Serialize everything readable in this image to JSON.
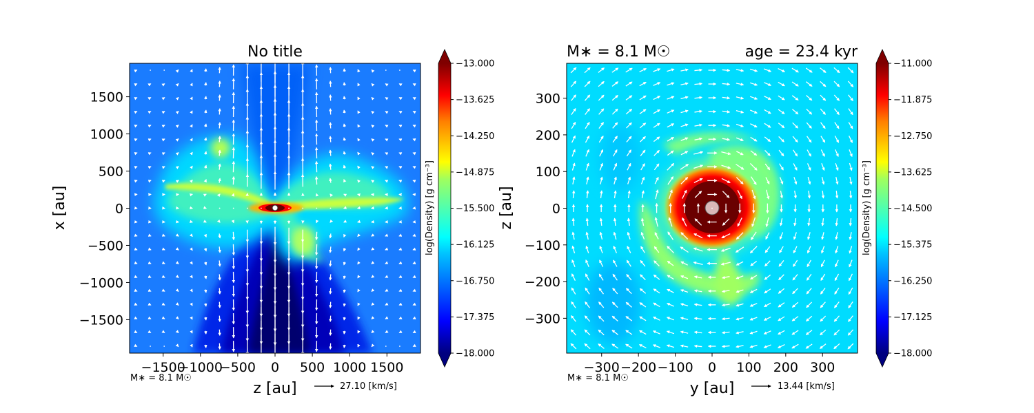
{
  "chart_data": [
    {
      "type": "heatmap",
      "panel": "left",
      "title": "No title",
      "xlabel": "z [au]",
      "ylabel": "x [au]",
      "xlim": [
        -1950,
        1950
      ],
      "ylim": [
        -1950,
        1950
      ],
      "xticks": [
        -1500,
        -1000,
        -500,
        0,
        500,
        1000,
        1500
      ],
      "xtick_labels": [
        "−1500",
        "−1000",
        "−500",
        "0",
        "500",
        "1000",
        "1500"
      ],
      "yticks": [
        1500,
        1000,
        500,
        0,
        -500,
        -1000,
        -1500
      ],
      "ytick_labels": [
        "1500",
        "1000",
        "500",
        "0",
        "−500",
        "−1000",
        "−1500"
      ],
      "colorbar": {
        "label": "log(Density) [g cm⁻³]",
        "min": -18.0,
        "max": -13.0,
        "ticks": [
          -13.0,
          -13.625,
          -14.25,
          -14.875,
          -15.5,
          -16.125,
          -16.75,
          -17.375,
          -18.0
        ],
        "tick_labels": [
          "−13.000",
          "−13.625",
          "−14.250",
          "−14.875",
          "−15.500",
          "−16.125",
          "−16.750",
          "−17.375",
          "−18.000"
        ],
        "extend": "both"
      },
      "corner_label": "M∗ = 8.1 M☉",
      "quiver_key": "27.10 [km/s]",
      "structure": "edge-on disk with bipolar outflow; dense core at center"
    },
    {
      "type": "heatmap",
      "panel": "right",
      "title_left": "M∗ = 8.1 M☉",
      "title_right": "age = 23.4 kyr",
      "xlabel": "y [au]",
      "ylabel": "z [au]",
      "xlim": [
        -395,
        395
      ],
      "ylim": [
        -395,
        395
      ],
      "xticks": [
        -300,
        -200,
        -100,
        0,
        100,
        200,
        300
      ],
      "xtick_labels": [
        "−300",
        "−200",
        "−100",
        "0",
        "100",
        "200",
        "300"
      ],
      "yticks": [
        300,
        200,
        100,
        0,
        -100,
        -200,
        -300
      ],
      "ytick_labels": [
        "300",
        "200",
        "100",
        "0",
        "−100",
        "−200",
        "−300"
      ],
      "colorbar": {
        "label": "log(Density) [g cm⁻³]",
        "min": -18.0,
        "max": -11.0,
        "ticks": [
          -11.0,
          -11.875,
          -12.75,
          -13.625,
          -14.5,
          -15.375,
          -16.25,
          -17.125,
          -18.0
        ],
        "tick_labels": [
          "−11.000",
          "−11.875",
          "−12.750",
          "−13.625",
          "−14.500",
          "−15.375",
          "−16.250",
          "−17.125",
          "−18.000"
        ],
        "extend": "both"
      },
      "corner_label": "M∗ = 8.1 M☉",
      "quiver_key": "13.44 [km/s]",
      "structure": "face-on disk with spiral arms; dense core at center"
    }
  ],
  "colors": {
    "jet": [
      "#00007f",
      "#0000ff",
      "#007fff",
      "#00ffff",
      "#7fff7f",
      "#ffff00",
      "#ff7f00",
      "#ff0000",
      "#7f0000"
    ],
    "arrow": "#ffffff",
    "sink": "#d9b8b8"
  }
}
